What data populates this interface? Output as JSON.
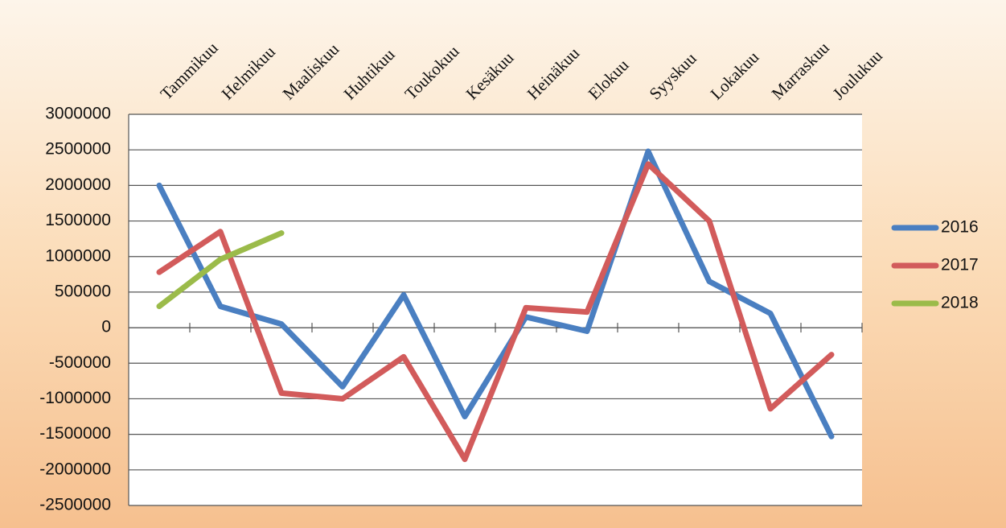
{
  "chart_data": {
    "type": "line",
    "categories": [
      "Tammikuu",
      "Helmikuu",
      "Maaliskuu",
      "Huhtikuu",
      "Toukokuu",
      "Kesäkuu",
      "Heinäkuu",
      "Elokuu",
      "Syyskuu",
      "Lokakuu",
      "Marraskuu",
      "Joulukuu"
    ],
    "series": [
      {
        "name": "2016",
        "color": "#4a7fc1",
        "values": [
          2000000,
          300000,
          50000,
          -830000,
          460000,
          -1250000,
          150000,
          -50000,
          2480000,
          650000,
          200000,
          -1530000
        ]
      },
      {
        "name": "2017",
        "color": "#d25b5b",
        "values": [
          780000,
          1350000,
          -920000,
          -1000000,
          -410000,
          -1850000,
          280000,
          220000,
          2300000,
          1500000,
          -1140000,
          -380000
        ]
      },
      {
        "name": "2018",
        "color": "#9bbb4a",
        "values": [
          300000,
          960000,
          1330000,
          null,
          null,
          null,
          null,
          null,
          null,
          null,
          null,
          null
        ]
      }
    ],
    "ylim": [
      -2500000,
      3000000
    ],
    "yticks": [
      -2500000,
      -2000000,
      -1500000,
      -1000000,
      -500000,
      0,
      500000,
      1000000,
      1500000,
      2000000,
      2500000,
      3000000
    ],
    "grid": true,
    "legend": "right"
  }
}
